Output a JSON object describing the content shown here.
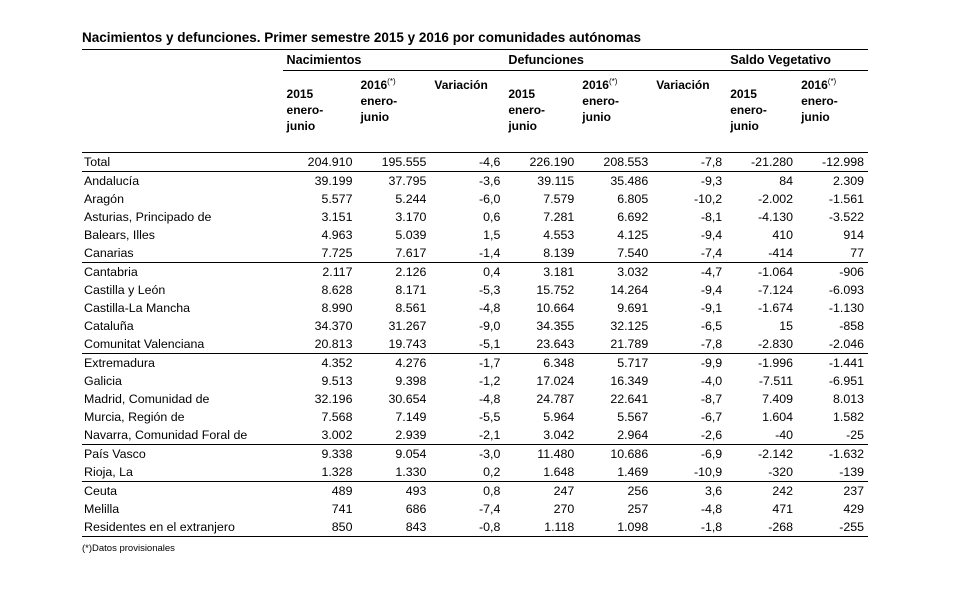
{
  "title": "Nacimientos y defunciones. Primer semestre 2015 y 2016 por comunidades autónomas",
  "groups": {
    "nacimientos": "Nacimientos",
    "defunciones": "Defunciones",
    "saldo": "Saldo Vegetativo"
  },
  "subheaders": {
    "y2015": "2015",
    "y2016": "2016",
    "sup": "(*)",
    "period_a": "enero-",
    "period_b": "junio",
    "variacion": "Variación"
  },
  "rows": [
    {
      "name": "Total",
      "n15": "204.910",
      "n16": "195.555",
      "nv": "-4,6",
      "d15": "226.190",
      "d16": "208.553",
      "dv": "-7,8",
      "s15": "-21.280",
      "s16": "-12.998"
    },
    {
      "name": "Andalucía",
      "n15": "39.199",
      "n16": "37.795",
      "nv": "-3,6",
      "d15": "39.115",
      "d16": "35.486",
      "dv": "-9,3",
      "s15": "84",
      "s16": "2.309"
    },
    {
      "name": "Aragón",
      "n15": "5.577",
      "n16": "5.244",
      "nv": "-6,0",
      "d15": "7.579",
      "d16": "6.805",
      "dv": "-10,2",
      "s15": "-2.002",
      "s16": "-1.561"
    },
    {
      "name": "Asturias, Principado de",
      "n15": "3.151",
      "n16": "3.170",
      "nv": "0,6",
      "d15": "7.281",
      "d16": "6.692",
      "dv": "-8,1",
      "s15": "-4.130",
      "s16": "-3.522"
    },
    {
      "name": "Balears, Illes",
      "n15": "4.963",
      "n16": "5.039",
      "nv": "1,5",
      "d15": "4.553",
      "d16": "4.125",
      "dv": "-9,4",
      "s15": "410",
      "s16": "914"
    },
    {
      "name": "Canarias",
      "n15": "7.725",
      "n16": "7.617",
      "nv": "-1,4",
      "d15": "8.139",
      "d16": "7.540",
      "dv": "-7,4",
      "s15": "-414",
      "s16": "77"
    },
    {
      "name": "Cantabria",
      "n15": "2.117",
      "n16": "2.126",
      "nv": "0,4",
      "d15": "3.181",
      "d16": "3.032",
      "dv": "-4,7",
      "s15": "-1.064",
      "s16": "-906"
    },
    {
      "name": "Castilla y León",
      "n15": "8.628",
      "n16": "8.171",
      "nv": "-5,3",
      "d15": "15.752",
      "d16": "14.264",
      "dv": "-9,4",
      "s15": "-7.124",
      "s16": "-6.093"
    },
    {
      "name": "Castilla-La Mancha",
      "n15": "8.990",
      "n16": "8.561",
      "nv": "-4,8",
      "d15": "10.664",
      "d16": "9.691",
      "dv": "-9,1",
      "s15": "-1.674",
      "s16": "-1.130"
    },
    {
      "name": "Cataluña",
      "n15": "34.370",
      "n16": "31.267",
      "nv": "-9,0",
      "d15": "34.355",
      "d16": "32.125",
      "dv": "-6,5",
      "s15": "15",
      "s16": "-858"
    },
    {
      "name": "Comunitat Valenciana",
      "n15": "20.813",
      "n16": "19.743",
      "nv": "-5,1",
      "d15": "23.643",
      "d16": "21.789",
      "dv": "-7,8",
      "s15": "-2.830",
      "s16": "-2.046"
    },
    {
      "name": "Extremadura",
      "n15": "4.352",
      "n16": "4.276",
      "nv": "-1,7",
      "d15": "6.348",
      "d16": "5.717",
      "dv": "-9,9",
      "s15": "-1.996",
      "s16": "-1.441"
    },
    {
      "name": "Galicia",
      "n15": "9.513",
      "n16": "9.398",
      "nv": "-1,2",
      "d15": "17.024",
      "d16": "16.349",
      "dv": "-4,0",
      "s15": "-7.511",
      "s16": "-6.951"
    },
    {
      "name": "Madrid, Comunidad de",
      "n15": "32.196",
      "n16": "30.654",
      "nv": "-4,8",
      "d15": "24.787",
      "d16": "22.641",
      "dv": "-8,7",
      "s15": "7.409",
      "s16": "8.013"
    },
    {
      "name": "Murcia, Región de",
      "n15": "7.568",
      "n16": "7.149",
      "nv": "-5,5",
      "d15": "5.964",
      "d16": "5.567",
      "dv": "-6,7",
      "s15": "1.604",
      "s16": "1.582"
    },
    {
      "name": "Navarra, Comunidad Foral de",
      "n15": "3.002",
      "n16": "2.939",
      "nv": "-2,1",
      "d15": "3.042",
      "d16": "2.964",
      "dv": "-2,6",
      "s15": "-40",
      "s16": "-25"
    },
    {
      "name": "País Vasco",
      "n15": "9.338",
      "n16": "9.054",
      "nv": "-3,0",
      "d15": "11.480",
      "d16": "10.686",
      "dv": "-6,9",
      "s15": "-2.142",
      "s16": "-1.632"
    },
    {
      "name": "Rioja, La",
      "n15": "1.328",
      "n16": "1.330",
      "nv": "0,2",
      "d15": "1.648",
      "d16": "1.469",
      "dv": "-10,9",
      "s15": "-320",
      "s16": "-139"
    },
    {
      "name": "Ceuta",
      "n15": "489",
      "n16": "493",
      "nv": "0,8",
      "d15": "247",
      "d16": "256",
      "dv": "3,6",
      "s15": "242",
      "s16": "237"
    },
    {
      "name": "Melilla",
      "n15": "741",
      "n16": "686",
      "nv": "-7,4",
      "d15": "270",
      "d16": "257",
      "dv": "-4,8",
      "s15": "471",
      "s16": "429"
    },
    {
      "name": "Residentes en el extranjero",
      "n15": "850",
      "n16": "843",
      "nv": "-0,8",
      "d15": "1.118",
      "d16": "1.098",
      "dv": "-1,8",
      "s15": "-268",
      "s16": "-255"
    }
  ],
  "footnote": "(*)Datos provisionales"
}
